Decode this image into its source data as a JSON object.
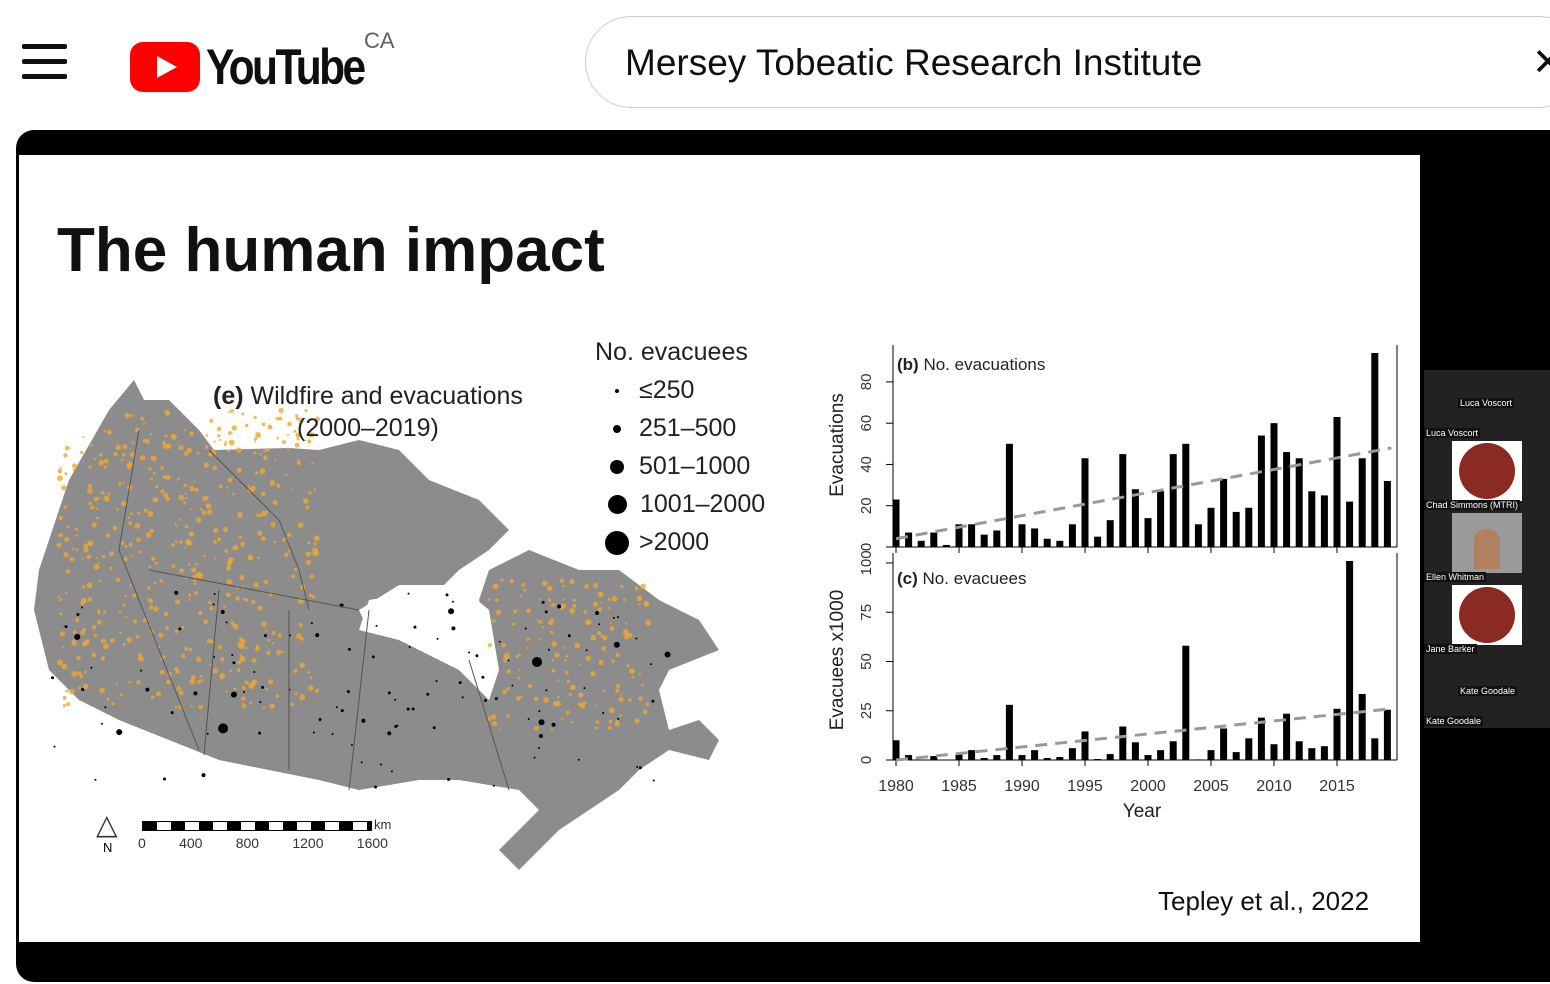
{
  "header": {
    "country": "CA",
    "logo_text": "YouTube",
    "search_value": "Mersey Tobeatic Research Institute",
    "clear_icon": "close-icon"
  },
  "slide": {
    "title": "The human impact",
    "map": {
      "label_letter": "(e)",
      "label": "Wildfire and evacuations",
      "label_years": "(2000–2019)",
      "north": "N",
      "scale_unit": "km",
      "scale_ticks": [
        "0",
        "400",
        "800",
        "1200",
        "1600"
      ],
      "fire_color": "#f0a830",
      "land_color": "#8c8c8c"
    },
    "legend": {
      "title": "No. evacuees",
      "items": [
        "≤250",
        "251–500",
        "501–1000",
        "1001–2000",
        ">2000"
      ]
    },
    "credit": "Tepley et al., 2022"
  },
  "participants": [
    "Luca Voscort",
    "Luca Voscort",
    "Chad Simmons (MTRI)",
    "Ellen Whitman",
    "Jane Barker",
    "Kate Goodale",
    "Kate Goodale"
  ],
  "chart_data": [
    {
      "type": "bar",
      "title_letter": "(b)",
      "title": "No. evacuations",
      "ylabel": "Evacuations",
      "ylim": [
        0,
        94
      ],
      "yticks": [
        "0",
        "20",
        "40",
        "60",
        "80"
      ],
      "x": [
        1980,
        1981,
        1982,
        1983,
        1984,
        1985,
        1986,
        1987,
        1988,
        1989,
        1990,
        1991,
        1992,
        1993,
        1994,
        1995,
        1996,
        1997,
        1998,
        1999,
        2000,
        2001,
        2002,
        2003,
        2004,
        2005,
        2006,
        2007,
        2008,
        2009,
        2010,
        2011,
        2012,
        2013,
        2014,
        2015,
        2016,
        2017,
        2018,
        2019
      ],
      "values": [
        23,
        7,
        3,
        7,
        1,
        11,
        11,
        6,
        8,
        50,
        11,
        9,
        4,
        3,
        11,
        43,
        5,
        13,
        45,
        28,
        14,
        27,
        45,
        50,
        11,
        19,
        33,
        17,
        19,
        54,
        60,
        46,
        43,
        27,
        25,
        63,
        22,
        43,
        94,
        32
      ],
      "trend": [
        4,
        48
      ]
    },
    {
      "type": "bar",
      "title_letter": "(c)",
      "title": "No. evacuees",
      "ylabel": "Evacuees x1000",
      "xlabel": "Year",
      "ylim": [
        0,
        101
      ],
      "yticks": [
        "0",
        "25",
        "50",
        "75",
        "100"
      ],
      "xticks": [
        "1980",
        "1985",
        "1990",
        "1995",
        "2000",
        "2005",
        "2010",
        "2015"
      ],
      "x": [
        1980,
        1981,
        1982,
        1983,
        1984,
        1985,
        1986,
        1987,
        1988,
        1989,
        1990,
        1991,
        1992,
        1993,
        1994,
        1995,
        1996,
        1997,
        1998,
        1999,
        2000,
        2001,
        2002,
        2003,
        2004,
        2005,
        2006,
        2007,
        2008,
        2009,
        2010,
        2011,
        2012,
        2013,
        2014,
        2015,
        2016,
        2017,
        2018,
        2019
      ],
      "values": [
        10,
        2.5,
        0,
        2,
        0,
        3,
        5,
        1,
        2.5,
        28,
        2.5,
        5,
        1,
        1.5,
        6,
        14.5,
        0.5,
        3,
        17,
        9,
        2.5,
        5,
        9.5,
        58,
        0.3,
        5,
        16,
        4,
        11,
        21.5,
        8,
        23.5,
        9.5,
        6,
        7,
        26,
        101,
        33.5,
        11,
        25.5
      ],
      "trend": [
        0,
        26
      ]
    }
  ]
}
